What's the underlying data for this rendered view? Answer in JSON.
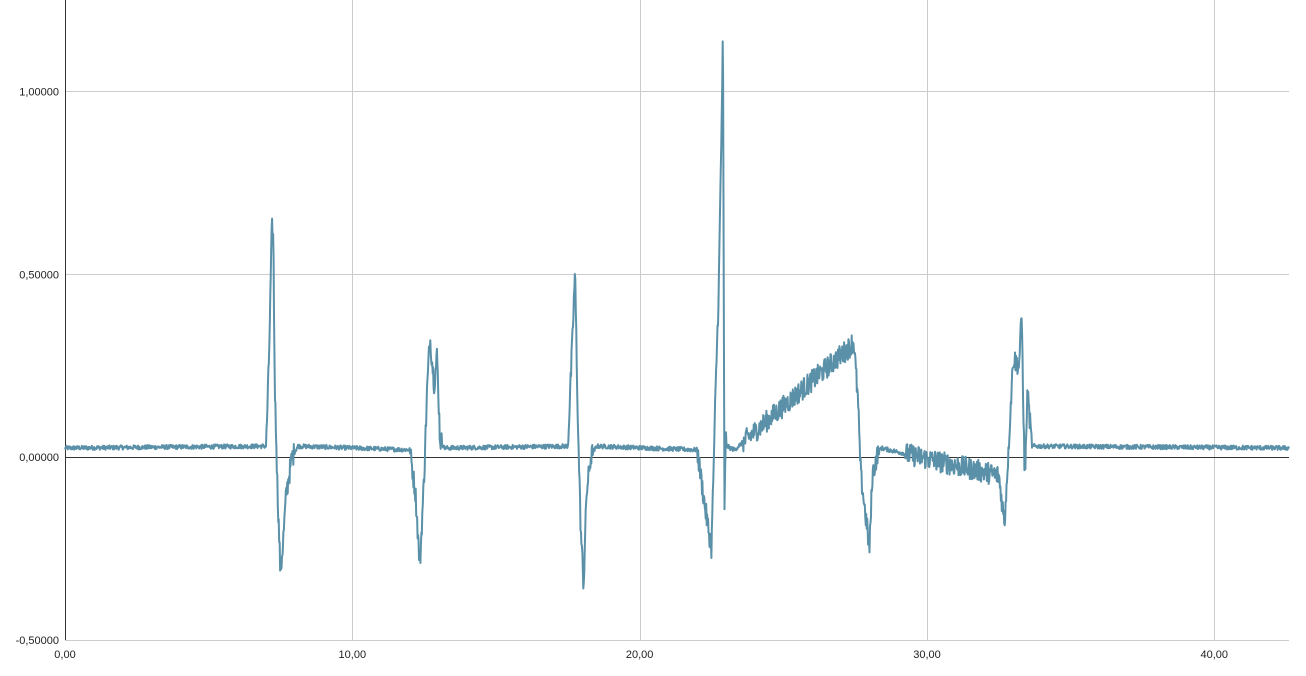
{
  "chart_data": {
    "type": "line",
    "title": "",
    "xlabel": "",
    "ylabel": "",
    "xlim": [
      0,
      42.6
    ],
    "ylim": [
      -0.5,
      1.25
    ],
    "grid": true,
    "legend": "none",
    "colors": {
      "line": "#5a90a8",
      "grid": "#cccccc",
      "axis": "#333333",
      "zero_line": "#333333"
    },
    "x_ticks": [
      {
        "value": 0,
        "label": "0,00"
      },
      {
        "value": 10,
        "label": "10,00"
      },
      {
        "value": 20,
        "label": "20,00"
      },
      {
        "value": 30,
        "label": "30,00"
      },
      {
        "value": 40,
        "label": "40,00"
      }
    ],
    "y_ticks": [
      {
        "value": -0.5,
        "label": "-0,50000"
      },
      {
        "value": 0,
        "label": "0,00000"
      },
      {
        "value": 0.5,
        "label": "0,50000"
      },
      {
        "value": 1.0,
        "label": "1,00000"
      }
    ],
    "series": [
      {
        "baseline": 0.025,
        "noise_amplitude": 0.006,
        "x": [
          0,
          7.0,
          7.1,
          7.2,
          7.25,
          7.3,
          7.4,
          7.5,
          7.6,
          7.7,
          7.8,
          7.9,
          8.1,
          12.0,
          12.2,
          12.35,
          12.5,
          12.6,
          12.7,
          12.85,
          12.95,
          13.05,
          13.2,
          17.5,
          17.65,
          17.75,
          17.85,
          17.95,
          18.05,
          18.15,
          18.3,
          18.5,
          22.0,
          22.3,
          22.5,
          22.65,
          22.75,
          22.85,
          22.9,
          22.95,
          23.0,
          23.05,
          23.15,
          23.3,
          27.3,
          27.45,
          27.6,
          27.7,
          27.85,
          28.0,
          28.1,
          28.25,
          28.4,
          32.5,
          32.7,
          33.0,
          33.2,
          33.3,
          33.4,
          33.5,
          33.65,
          42.6
        ],
        "y": [
          0.025,
          0.03,
          0.27,
          0.63,
          0.6,
          0.2,
          -0.1,
          -0.32,
          -0.22,
          -0.1,
          -0.05,
          0.0,
          0.03,
          0.02,
          -0.1,
          -0.3,
          -0.05,
          0.18,
          0.33,
          0.2,
          0.28,
          0.05,
          0.025,
          0.03,
          0.3,
          0.51,
          0.1,
          -0.2,
          -0.35,
          -0.1,
          0.0,
          0.03,
          0.02,
          -0.15,
          -0.25,
          0.2,
          0.45,
          0.9,
          1.17,
          -0.15,
          0.05,
          0.03,
          0.025,
          0.02,
          0.3,
          0.32,
          0.15,
          -0.05,
          -0.15,
          -0.25,
          -0.05,
          0.0,
          0.025,
          -0.05,
          -0.18,
          0.27,
          0.25,
          0.39,
          -0.07,
          0.18,
          0.03,
          0.025
        ]
      }
    ]
  }
}
